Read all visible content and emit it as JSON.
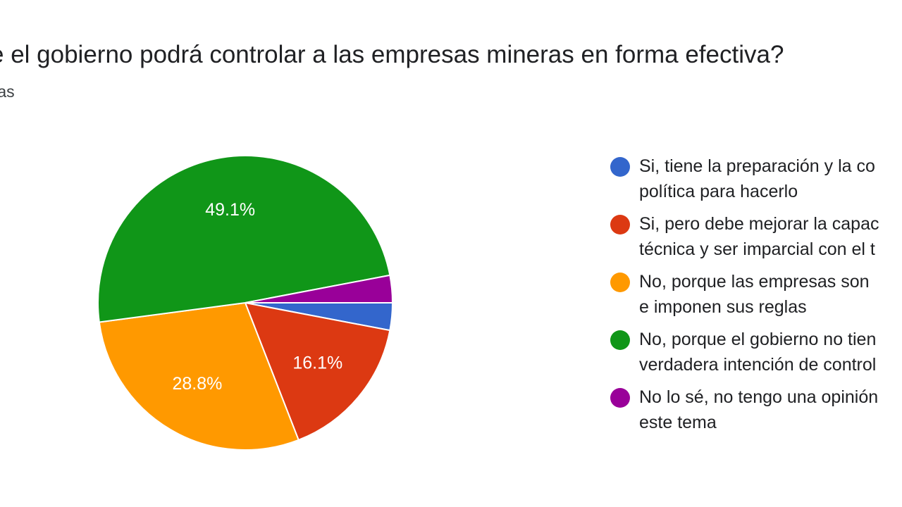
{
  "chart_data": {
    "type": "pie",
    "title": "e el gobierno podrá controlar a las empresas mineras en forma efectiva?",
    "subtitle": "tas",
    "slices": [
      {
        "label": "Si, tiene la preparación y la co\npolítica para hacerlo",
        "value": 3.0,
        "color": "#3366cc",
        "data_label": ""
      },
      {
        "label": "Si, pero debe mejorar la capac\ntécnica y ser imparcial con el t",
        "value": 16.1,
        "color": "#dc3912",
        "data_label": "16.1%"
      },
      {
        "label": "No, porque las empresas son\ne imponen sus reglas",
        "value": 28.8,
        "color": "#ff9900",
        "data_label": "28.8%"
      },
      {
        "label": "No, porque el gobierno no tien\nverdadera intención de control",
        "value": 49.1,
        "color": "#109618",
        "data_label": "49.1%"
      },
      {
        "label": "No lo sé, no tengo una opinión\neste tema",
        "value": 3.0,
        "color": "#990099",
        "data_label": ""
      }
    ],
    "legend_position": "right"
  }
}
